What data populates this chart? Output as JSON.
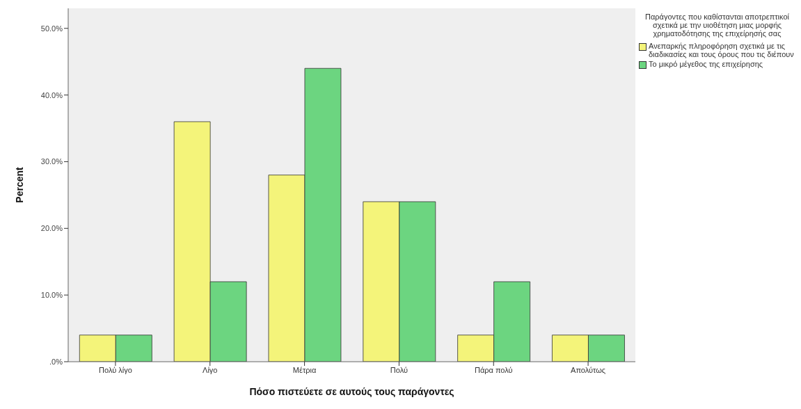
{
  "chart_data": {
    "type": "bar",
    "xlabel": "Πόσο πιστεύετε σε αυτούς τους παράγοντες",
    "ylabel": "Percent",
    "legend_title": "Παράγοντες που καθίστανται αποτρεπτικοί σχετικά με την υιοθέτηση μιας μορφής χρηματοδότησης της επιχείρησής σας",
    "categories": [
      "Πολύ λίγο",
      "Λίγο",
      "Μέτρια",
      "Πολύ",
      "Πάρα πολύ",
      "Απολύτως"
    ],
    "series": [
      {
        "name": "Ανεπαρκής πληροφόρηση σχετικά με τις διαδικασίες και τους όρους που τις διέπουν",
        "color": "#f4f47a",
        "values": [
          4,
          36,
          28,
          24,
          4,
          4
        ]
      },
      {
        "name": "Το μικρό μέγεθος της επιχείρησης",
        "color": "#6cd580",
        "values": [
          4,
          12,
          44,
          24,
          12,
          4
        ]
      }
    ],
    "ylim": [
      0,
      53
    ],
    "yticks": [
      {
        "value": 0,
        "label": ".0%"
      },
      {
        "value": 10,
        "label": "10.0%"
      },
      {
        "value": 20,
        "label": "20.0%"
      },
      {
        "value": 30,
        "label": "30.0%"
      },
      {
        "value": 40,
        "label": "40.0%"
      },
      {
        "value": 50,
        "label": "50.0%"
      }
    ],
    "grid": false,
    "legend": "top right"
  }
}
